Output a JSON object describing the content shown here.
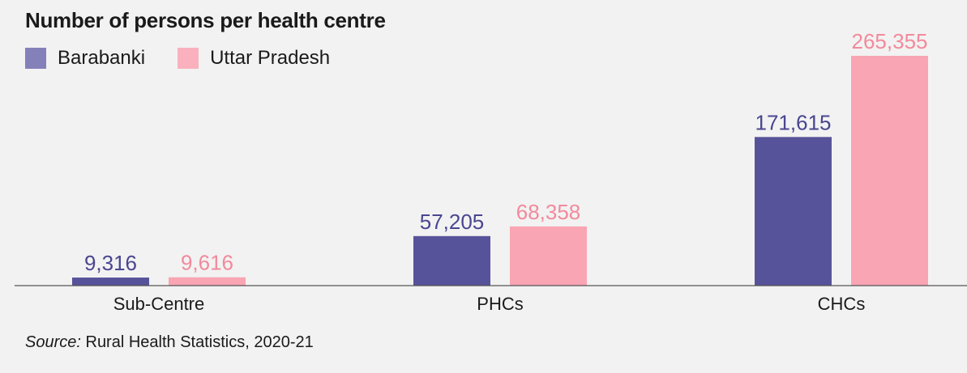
{
  "chart_data": {
    "type": "bar",
    "title": "Number of persons per health centre",
    "categories": [
      "Sub-Centre",
      "PHCs",
      "CHCs"
    ],
    "series": [
      {
        "name": "Barabanki",
        "color": "#57539a",
        "label_color": "#4a4690",
        "values": [
          9316,
          57205,
          171615
        ],
        "labels": [
          "9,316",
          "57,205",
          "171,615"
        ]
      },
      {
        "name": "Uttar Pradesh",
        "color": "#f9a5b3",
        "label_color": "#f28a9c",
        "values": [
          9616,
          68358,
          265355
        ],
        "labels": [
          "9,616",
          "68,358",
          "265,355"
        ]
      }
    ],
    "ylim": [
      0,
      265355
    ],
    "legend": "top-left",
    "grid": false
  },
  "source": {
    "label": "Source:",
    "text": " Rural Health Statistics, 2020-21"
  },
  "colors": {
    "background": "#f2f2f2",
    "axis": "#555555",
    "text": "#1a1a1a"
  }
}
